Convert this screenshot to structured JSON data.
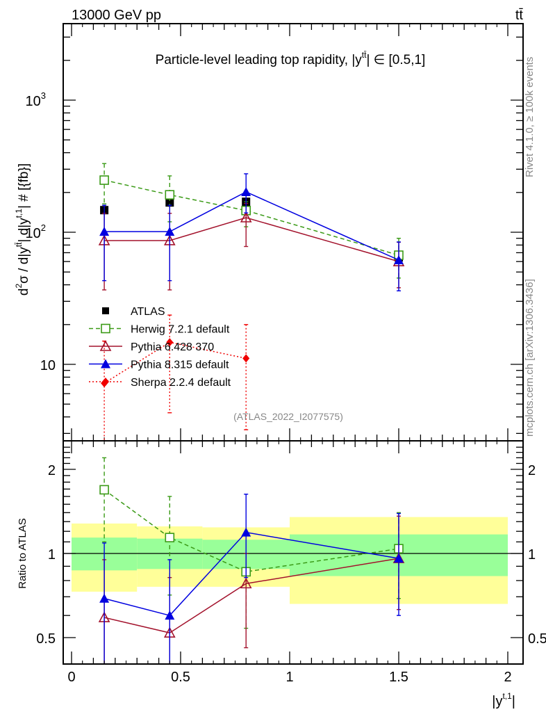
{
  "header": {
    "left_label": "13000 GeV pp",
    "right_label": "tt̄"
  },
  "side_text": {
    "rivet": "Rivet 4.1.0, ≥ 100k events",
    "mcplots": "mcplots.cern.ch [arXiv:1306.3436]"
  },
  "chart_data": [
    {
      "type": "line",
      "panel": "main",
      "title": "Particle-level leading top rapidity, |ȳtt̄| ∈ [0.5,1]",
      "title_main": "Particle-level leading top rapidity, |y",
      "title_sup": "tt̄",
      "title_tail": "| ∈ [0.5,1]",
      "ylabel": "d²σ / d|y^tt̄| d|y^{t,1}| # [{fb}]",
      "ylabel_parts": {
        "a": "d",
        "b": "2",
        "c": "σ / d|y",
        "d": "tt̄",
        "e": "| d|y",
        "f": "t,1",
        "g": "| # [{fb}]"
      },
      "yscale": "log",
      "ylim": [
        2.7,
        3900
      ],
      "xlim": [
        -0.04,
        2.07
      ],
      "yticks": [
        {
          "v": 10,
          "label": "10"
        },
        {
          "v": 100,
          "label": "10",
          "exp": "2"
        },
        {
          "v": 1000,
          "label": "10",
          "exp": "3"
        }
      ],
      "watermark": "(ATLAS_2022_I2077575)",
      "legend_position": "lower-left",
      "x": [
        0.15,
        0.45,
        0.8,
        1.5
      ],
      "series": [
        {
          "name": "ATLAS",
          "color": "#000000",
          "marker": "filled-square",
          "line": "none",
          "values": [
            147,
            168,
            170,
            64.5
          ]
        },
        {
          "name": "Herwig 7.2.1 default",
          "color": "#3a9a16",
          "marker": "open-square",
          "line": "dashed",
          "values": [
            248,
            192,
            146,
            67
          ],
          "err_up": [
            331,
            267,
            170,
            90
          ],
          "err_down": [
            164,
            120,
            110,
            45
          ]
        },
        {
          "name": "Pythia 6.428 370",
          "color": "#a3122c",
          "marker": "open-triangle",
          "line": "solid",
          "values": [
            86.5,
            86.5,
            129,
            60
          ],
          "err_up": [
            139,
            139,
            165,
            84
          ],
          "err_down": [
            36.6,
            36.6,
            78,
            38
          ]
        },
        {
          "name": "Pythia 8.315 default",
          "color": "#0000e0",
          "marker": "filled-triangle",
          "line": "solid",
          "values": [
            101,
            101,
            202,
            61.6
          ],
          "err_up": [
            160,
            160,
            277,
            84.4
          ],
          "err_down": [
            43,
            43,
            140,
            36
          ]
        },
        {
          "name": "Sherpa 2.2.4 default",
          "color": "#f00000",
          "marker": "filled-diamond",
          "line": "dotted",
          "values": [
            7.2,
            14.7,
            11.1,
            null
          ],
          "err_up": [
            15,
            23.6,
            20,
            null
          ],
          "err_down": [
            1,
            4.3,
            3.2,
            null
          ]
        }
      ]
    },
    {
      "type": "line",
      "panel": "ratio",
      "ylabel": "Ratio to ATLAS",
      "xlabel": "|y^{t,1}|",
      "xlabel_parts": {
        "a": "|y",
        "b": "t,1",
        "c": "|"
      },
      "yscale": "log",
      "ylim": [
        0.4,
        2.5
      ],
      "xlim": [
        -0.04,
        2.07
      ],
      "xticks": [
        0,
        0.5,
        1,
        1.5,
        2
      ],
      "xtick_labels": [
        "0",
        "0.5",
        "1",
        "1.5",
        "2"
      ],
      "yticks": [
        0.5,
        1,
        2
      ],
      "ytick_labels": [
        "0.5",
        "1",
        "2"
      ],
      "bins": [
        [
          0,
          0.3
        ],
        [
          0.3,
          0.6
        ],
        [
          0.6,
          1.0
        ],
        [
          1.0,
          2.0
        ]
      ],
      "band_yellow": {
        "color": "#ffff99",
        "low": [
          0.73,
          0.76,
          0.76,
          0.66
        ],
        "high": [
          1.28,
          1.25,
          1.24,
          1.35
        ]
      },
      "band_green": {
        "color": "#99ff99",
        "low": [
          0.87,
          0.88,
          0.88,
          0.83
        ],
        "high": [
          1.14,
          1.13,
          1.12,
          1.17
        ]
      },
      "x": [
        0.15,
        0.45,
        0.8,
        1.5
      ],
      "series": [
        {
          "name": "Herwig 7.2.1 default",
          "color": "#3a9a16",
          "marker": "open-square",
          "line": "dashed",
          "values": [
            1.69,
            1.14,
            0.86,
            1.04
          ],
          "err_up": [
            2.2,
            1.6,
            1.0,
            1.4
          ],
          "err_down": [
            1.1,
            0.71,
            0.54,
            0.69
          ]
        },
        {
          "name": "Pythia 6.428 370",
          "color": "#a3122c",
          "marker": "open-triangle",
          "line": "solid",
          "values": [
            0.59,
            0.52,
            0.78,
            0.96
          ],
          "err_up": [
            0.95,
            0.82,
            1.0,
            1.36
          ],
          "err_down": [
            0.25,
            0.22,
            0.46,
            0.63
          ]
        },
        {
          "name": "Pythia 8.315 default",
          "color": "#0000e0",
          "marker": "filled-triangle",
          "line": "solid",
          "values": [
            0.69,
            0.6,
            1.19,
            0.96
          ],
          "err_up": [
            1.09,
            0.95,
            1.63,
            1.39
          ],
          "err_down": [
            0.3,
            0.3,
            0.82,
            0.6
          ]
        }
      ]
    }
  ]
}
